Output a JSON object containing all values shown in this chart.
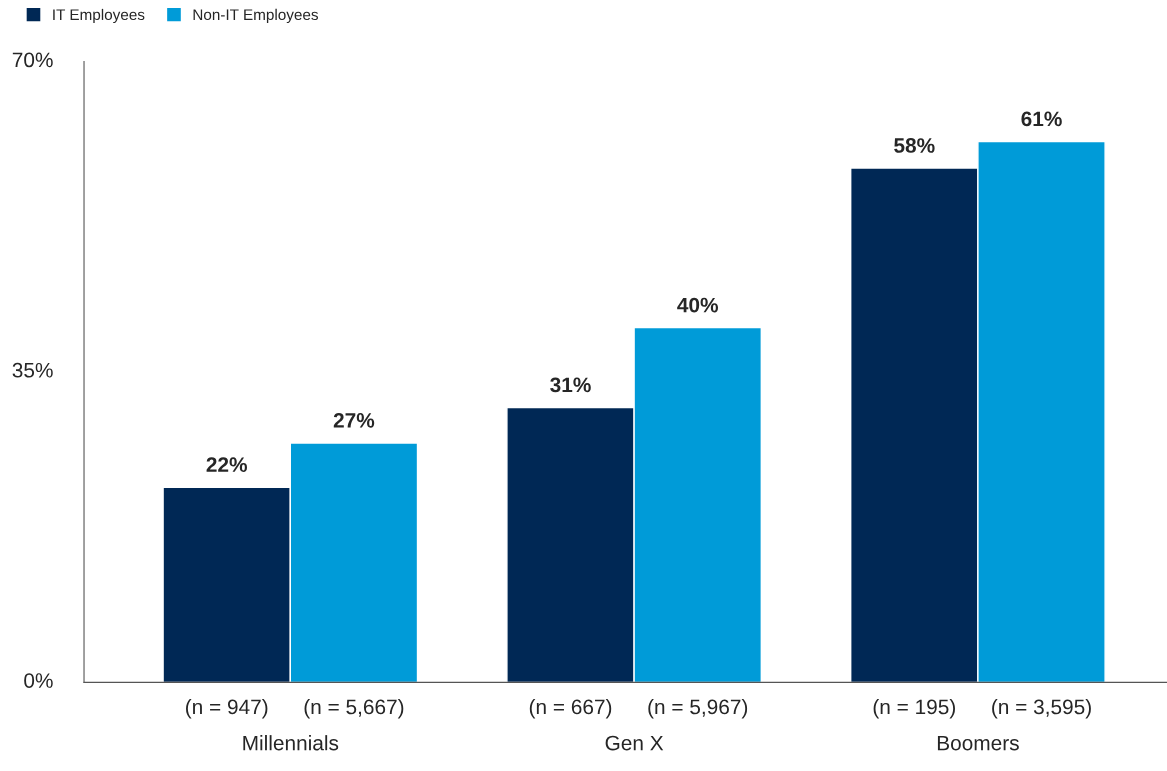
{
  "chart_data": {
    "type": "bar",
    "categories": [
      "Millennials",
      "Gen X",
      "Boomers"
    ],
    "series": [
      {
        "name": "IT Employees",
        "color": "#002855",
        "values": [
          22,
          31,
          58
        ],
        "value_labels": [
          "22%",
          "31%",
          "58%"
        ]
      },
      {
        "name": "Non-IT Employees",
        "color": "#009bd8",
        "values": [
          27,
          40,
          61
        ],
        "value_labels": [
          "27%",
          "40%",
          "61%"
        ]
      }
    ],
    "ylim": [
      0,
      70
    ],
    "yticks": [
      {
        "value": 0,
        "label": "0%"
      },
      {
        "value": 35,
        "label": "35%"
      },
      {
        "value": 70,
        "label": "70%"
      }
    ],
    "grid": false,
    "legend": "top left",
    "annotations": [
      "(n = 947)",
      "(n = 5,667)",
      "(n = 667)",
      "(n = 5,967)",
      "(n = 195)",
      "(n = 3,595)"
    ]
  }
}
